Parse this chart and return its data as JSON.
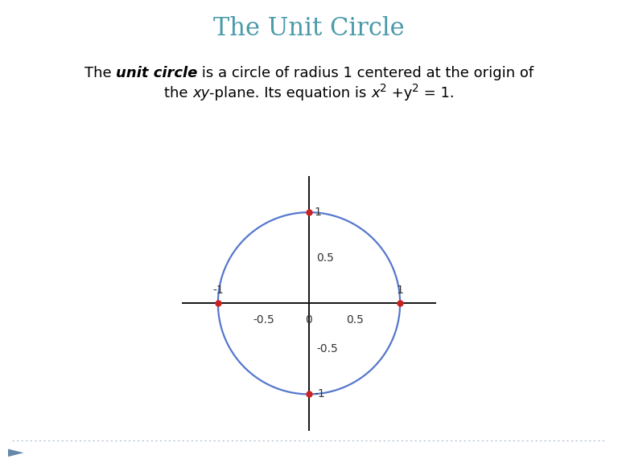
{
  "title": "The Unit Circle",
  "title_color": "#4a9aaa",
  "title_fontsize": 22,
  "bg_color": "#ffffff",
  "circle_color": "#5577cc",
  "circle_linewidth": 1.6,
  "axis_color": "#111111",
  "axis_linewidth": 1.4,
  "dot_color": "#cc2222",
  "dot_size": 6,
  "tick_label_color": "#333333",
  "tick_fontsize": 10,
  "body_fontsize": 13,
  "footer_dot_color": "#aabbcc",
  "arrow_color": "#6688aa",
  "xlim": [
    -1.4,
    1.4
  ],
  "ylim": [
    -1.4,
    1.4
  ]
}
